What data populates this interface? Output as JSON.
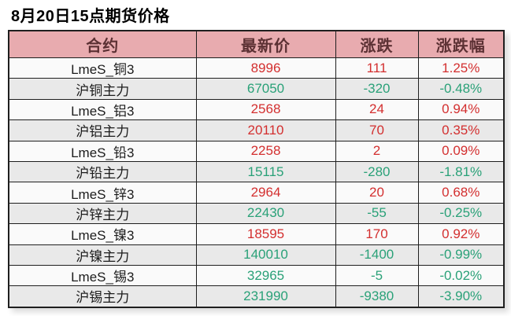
{
  "page": {
    "title": "8月20日15点期货价格"
  },
  "colors": {
    "title_text": "#000000",
    "header_bg": "#e8abaf",
    "header_text": "#5c3134",
    "row_light": "#fafafa",
    "row_dark": "#e9e9e9",
    "border": "#1f1f1f",
    "up_red": "#d32f2f",
    "down_green": "#2aa178"
  },
  "chart_data": {
    "type": "table",
    "title": "8月20日15点期货价格",
    "columns": [
      "合约",
      "最新价",
      "涨跌",
      "涨跌幅"
    ],
    "rows": [
      {
        "contract": "LmeS_铜3",
        "price": "8996",
        "change": "111",
        "pct": "1.25%",
        "direction": "up"
      },
      {
        "contract": "沪铜主力",
        "price": "67050",
        "change": "-320",
        "pct": "-0.48%",
        "direction": "down"
      },
      {
        "contract": "LmeS_铝3",
        "price": "2568",
        "change": "24",
        "pct": "0.94%",
        "direction": "up"
      },
      {
        "contract": "沪铝主力",
        "price": "20110",
        "change": "70",
        "pct": "0.35%",
        "direction": "up"
      },
      {
        "contract": "LmeS_铅3",
        "price": "2258",
        "change": "2",
        "pct": "0.09%",
        "direction": "up"
      },
      {
        "contract": "沪铅主力",
        "price": "15115",
        "change": "-280",
        "pct": "-1.81%",
        "direction": "down"
      },
      {
        "contract": "LmeS_锌3",
        "price": "2964",
        "change": "20",
        "pct": "0.68%",
        "direction": "up"
      },
      {
        "contract": "沪锌主力",
        "price": "22430",
        "change": "-55",
        "pct": "-0.25%",
        "direction": "down"
      },
      {
        "contract": "LmeS_镍3",
        "price": "18595",
        "change": "170",
        "pct": "0.92%",
        "direction": "up"
      },
      {
        "contract": "沪镍主力",
        "price": "140010",
        "change": "-1400",
        "pct": "-0.99%",
        "direction": "down"
      },
      {
        "contract": "LmeS_锡3",
        "price": "32965",
        "change": "-5",
        "pct": "-0.02%",
        "direction": "down"
      },
      {
        "contract": "沪锡主力",
        "price": "231990",
        "change": "-9380",
        "pct": "-3.90%",
        "direction": "down"
      }
    ]
  }
}
